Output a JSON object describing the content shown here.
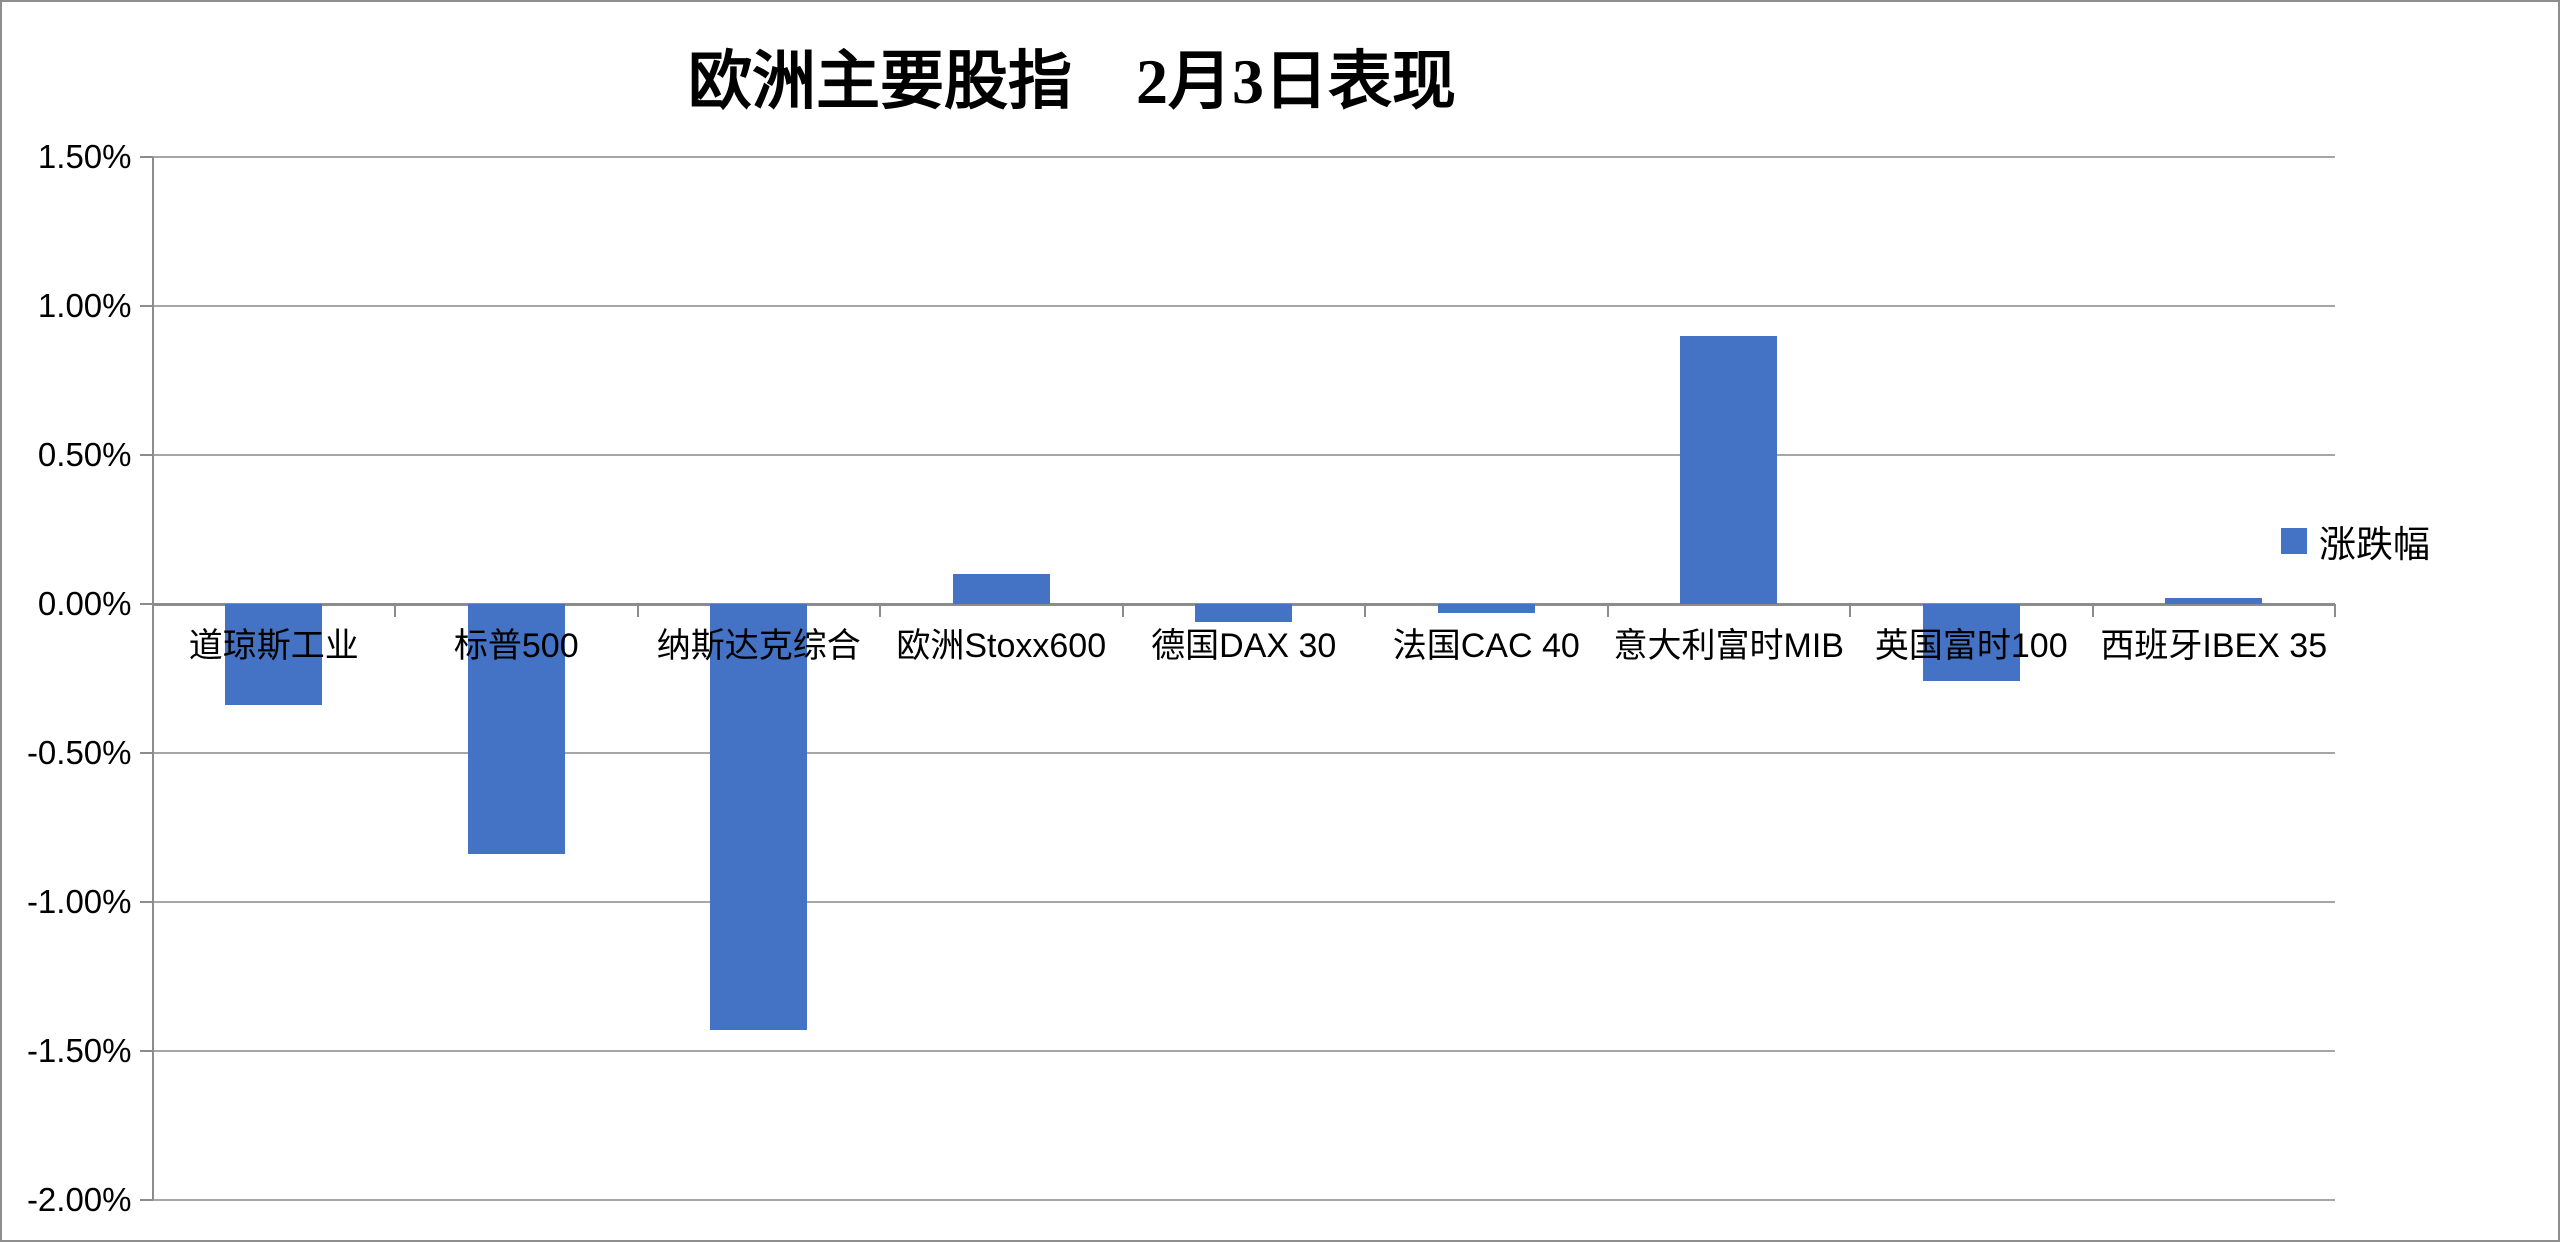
{
  "chart_data": {
    "type": "bar",
    "title": "欧洲主要股指　2月3日表现",
    "categories": [
      "道琼斯工业",
      "标普500",
      "纳斯达克综合",
      "欧洲Stoxx600",
      "德国DAX 30",
      "法国CAC 40",
      "意大利富时MIB",
      "英国富时100",
      "西班牙IBEX 35"
    ],
    "series": [
      {
        "name": "涨跌幅",
        "values": [
          -0.34,
          -0.84,
          -1.43,
          0.1,
          -0.06,
          -0.03,
          0.9,
          -0.26,
          0.02
        ]
      }
    ],
    "value_unit": "%",
    "ylim": [
      -2.0,
      1.5
    ],
    "ytick_step": 0.5,
    "yticks": [
      {
        "label": "1.50%",
        "value": 1.5
      },
      {
        "label": "1.00%",
        "value": 1.0
      },
      {
        "label": "0.50%",
        "value": 0.5
      },
      {
        "label": "0.00%",
        "value": 0.0
      },
      {
        "label": "-0.50%",
        "value": -0.5
      },
      {
        "label": "-1.00%",
        "value": -1.0
      },
      {
        "label": "-1.50%",
        "value": -1.5
      },
      {
        "label": "-2.00%",
        "value": -2.0
      }
    ],
    "grid": "horizontal-only",
    "legend": {
      "position": "right",
      "label": "涨跌幅"
    },
    "colors": {
      "bar": "#4472C4",
      "gridline": "#a6a6a6",
      "axis": "#8c8c8c",
      "border": "#8e8e8e",
      "text": "#000000",
      "background": "#ffffff"
    }
  }
}
